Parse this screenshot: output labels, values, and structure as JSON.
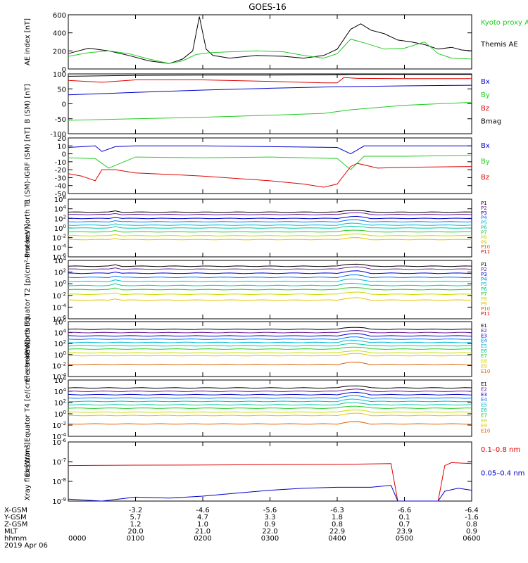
{
  "title": "GOES-16",
  "colors": {
    "black": "#000000",
    "red": "#e00000",
    "green": "#22cc22",
    "blue": "#0000cc",
    "p": [
      "#000000",
      "#6a1b9a",
      "#0000cc",
      "#0077ff",
      "#00bcd4",
      "#00c8a0",
      "#22cc22",
      "#c8dc00",
      "#e8c000",
      "#e06000",
      "#e00000"
    ]
  },
  "chart_data": [
    {
      "type": "line",
      "ylabel": "AE index [nT]",
      "ylim": [
        0,
        600
      ],
      "y_ticks": [
        "0",
        "200",
        "400",
        "600"
      ],
      "legend": [
        {
          "label": "Kyoto proxy AE",
          "color": "green"
        },
        {
          "label": "Themis AE",
          "color": "black"
        }
      ],
      "series": [
        {
          "name": "Themis AE",
          "color": "black",
          "x": [
            0,
            0.3,
            0.6,
            0.9,
            1.2,
            1.5,
            1.7,
            1.85,
            1.95,
            2.05,
            2.15,
            2.4,
            2.8,
            3.2,
            3.5,
            3.8,
            4.0,
            4.2,
            4.35,
            4.5,
            4.7,
            4.9,
            5.1,
            5.3,
            5.5,
            5.7,
            5.85,
            6.0
          ],
          "y": [
            170,
            230,
            200,
            150,
            90,
            60,
            110,
            200,
            580,
            220,
            150,
            120,
            150,
            140,
            120,
            150,
            220,
            440,
            500,
            430,
            390,
            320,
            300,
            270,
            220,
            240,
            210,
            200
          ]
        },
        {
          "name": "Kyoto proxy AE",
          "color": "green",
          "x": [
            0,
            0.3,
            0.6,
            0.9,
            1.2,
            1.5,
            1.7,
            1.9,
            2.1,
            2.4,
            2.8,
            3.2,
            3.5,
            3.8,
            4.0,
            4.2,
            4.4,
            4.7,
            5.0,
            5.3,
            5.5,
            5.7,
            6.0
          ],
          "y": [
            140,
            180,
            200,
            170,
            110,
            60,
            90,
            160,
            180,
            190,
            200,
            190,
            150,
            120,
            170,
            330,
            290,
            220,
            230,
            300,
            170,
            120,
            110
          ]
        }
      ]
    },
    {
      "type": "line",
      "ylabel": "B (SM) [nT]",
      "ylim": [
        -100,
        100
      ],
      "y_ticks": [
        "-100",
        "-50",
        "0",
        "50",
        "100"
      ],
      "legend": [
        {
          "label": "Bx",
          "color": "blue"
        },
        {
          "label": "By",
          "color": "green"
        },
        {
          "label": "Bz",
          "color": "red"
        },
        {
          "label": "Bmag",
          "color": "black"
        }
      ],
      "series": [
        {
          "name": "Bmag",
          "color": "black",
          "x": [
            0,
            1,
            2,
            3,
            4,
            4.2,
            5,
            6
          ],
          "y": [
            92,
            95,
            96,
            96,
            97,
            98,
            98,
            98
          ]
        },
        {
          "name": "Bz",
          "color": "red",
          "x": [
            0,
            0.5,
            1,
            2,
            3,
            3.8,
            4.0,
            4.1,
            4.3,
            5,
            6
          ],
          "y": [
            78,
            72,
            80,
            80,
            75,
            70,
            70,
            88,
            85,
            84,
            84
          ]
        },
        {
          "name": "Bx",
          "color": "blue",
          "x": [
            0,
            1,
            2,
            3,
            4,
            5,
            6
          ],
          "y": [
            30,
            38,
            46,
            52,
            57,
            60,
            62
          ]
        },
        {
          "name": "By",
          "color": "green",
          "x": [
            0,
            1,
            2,
            3,
            3.8,
            4.2,
            5,
            6
          ],
          "y": [
            -55,
            -50,
            -45,
            -38,
            -32,
            -20,
            -5,
            5
          ]
        }
      ]
    },
    {
      "type": "line",
      "ylabel": "B (SM)-IGRF (SM) [nT]",
      "ylim": [
        -50,
        20
      ],
      "y_ticks": [
        "-50",
        "-40",
        "-30",
        "-20",
        "-10",
        "0",
        "10",
        "20"
      ],
      "legend": [
        {
          "label": "Bx",
          "color": "blue"
        },
        {
          "label": "By",
          "color": "green"
        },
        {
          "label": "Bz",
          "color": "red"
        }
      ],
      "series": [
        {
          "name": "Bx",
          "color": "blue",
          "x": [
            0,
            0.4,
            0.5,
            0.7,
            1,
            2,
            3,
            4,
            4.2,
            4.4,
            5,
            6
          ],
          "y": [
            8,
            10,
            3,
            9,
            10,
            10,
            9,
            8,
            0,
            10,
            10,
            10
          ]
        },
        {
          "name": "By",
          "color": "green",
          "x": [
            0,
            0.4,
            0.6,
            1,
            2,
            3,
            4,
            4.2,
            4.4,
            5,
            6
          ],
          "y": [
            -5,
            -6,
            -18,
            -4,
            -5,
            -4,
            -6,
            -20,
            -3,
            -3,
            -2
          ]
        },
        {
          "name": "Bz",
          "color": "red",
          "x": [
            0,
            0.2,
            0.4,
            0.5,
            0.7,
            1,
            1.5,
            2,
            3,
            3.5,
            3.8,
            4.0,
            4.2,
            4.3,
            4.6,
            5,
            6
          ],
          "y": [
            -25,
            -28,
            -34,
            -20,
            -20,
            -24,
            -26,
            -28,
            -34,
            -38,
            -42,
            -38,
            -16,
            -12,
            -18,
            -17,
            -16
          ]
        }
      ]
    },
    {
      "type": "line",
      "ylabel": "Protons North T1",
      "y_ticks": [
        "10^-6",
        "10^-4",
        "10^-2",
        "10^0",
        "10^2",
        "10^4",
        "10^6"
      ],
      "ylim_log10": [
        -6,
        6
      ],
      "legend": [
        "P1",
        "P2",
        "P3",
        "P4",
        "P5",
        "P6",
        "P7",
        "P8",
        "P9",
        "P10",
        "P11"
      ],
      "levels_log10": [
        3.3,
        2.8,
        2.0,
        1.3,
        0.6,
        0.0,
        -0.8,
        -1.6,
        -2.4
      ]
    },
    {
      "type": "line",
      "ylabel": "Protons Equator T2 [p/(cm²-s-sr-keV)]",
      "y_ticks": [
        "10^-6",
        "10^-4",
        "10^-2",
        "10^0",
        "10^2",
        "10^4"
      ],
      "ylim_log10": [
        -6,
        4
      ],
      "legend": [
        "P1",
        "P2",
        "P3",
        "P4",
        "P5",
        "P6",
        "P7",
        "P8",
        "P9",
        "P10",
        "P11"
      ],
      "levels_log10": [
        3.0,
        2.5,
        1.8,
        1.1,
        0.4,
        -0.3,
        -1.0,
        -1.8,
        -2.8
      ]
    },
    {
      "type": "line",
      "ylabel": "Electrons North T3",
      "y_ticks": [
        "10^-4",
        "10^-2",
        "10^0",
        "10^2",
        "10^4",
        "10^6"
      ],
      "ylim_log10": [
        -4,
        6
      ],
      "legend": [
        "E1",
        "E2",
        "E3",
        "E4",
        "E5",
        "E6",
        "E7",
        "E8",
        "E9",
        "E10"
      ],
      "levels_log10": [
        4.6,
        4.0,
        3.4,
        2.8,
        2.2,
        1.6,
        1.0,
        0.3,
        -0.2,
        -1.8
      ]
    },
    {
      "type": "line",
      "ylabel": "Electrons Equator T4 [e/(cm²-s-sr-keV)]",
      "y_ticks": [
        "10^-4",
        "10^-2",
        "10^0",
        "10^2",
        "10^4",
        "10^6"
      ],
      "ylim_log10": [
        -4,
        6
      ],
      "legend": [
        "E1",
        "E2",
        "E3",
        "E4",
        "E5",
        "E6",
        "E7",
        "E8",
        "E9",
        "E10"
      ],
      "levels_log10": [
        4.6,
        4.0,
        3.4,
        2.8,
        2.2,
        1.6,
        1.0,
        0.3,
        -0.3,
        -1.8
      ]
    },
    {
      "type": "line",
      "ylabel": "Xray flux [W/m²]",
      "y_ticks": [
        "10^-9",
        "10^-8",
        "10^-7",
        "10^-6"
      ],
      "ylim_log10": [
        -9,
        -6
      ],
      "legend": [
        {
          "label": "0.1–0.8 nm",
          "color": "red"
        },
        {
          "label": "0.05–0.4 nm",
          "color": "blue"
        }
      ],
      "series": [
        {
          "name": "0.1–0.8 nm",
          "color": "red",
          "x": [
            0,
            1,
            2,
            3,
            4,
            4.8,
            4.9,
            5.0,
            5.5,
            5.6,
            5.7,
            6.0
          ],
          "y": [
            -7.2,
            -7.18,
            -7.17,
            -7.15,
            -7.14,
            -7.1,
            -9.0,
            null,
            -9.0,
            -7.2,
            -7.05,
            -7.1
          ]
        },
        {
          "name": "0.05–0.4 nm",
          "color": "blue",
          "x": [
            0,
            0.5,
            1,
            1.5,
            2,
            2.5,
            3,
            3.5,
            4,
            4.5,
            4.8,
            4.9,
            5.5,
            5.6,
            5.8,
            6.0
          ],
          "y": [
            -8.9,
            -9.0,
            -8.8,
            -8.85,
            -8.75,
            -8.6,
            -8.45,
            -8.35,
            -8.3,
            -8.3,
            -8.2,
            -9.0,
            -9.0,
            -8.5,
            -8.35,
            -8.45
          ]
        }
      ]
    }
  ],
  "x_axis": {
    "tick_labels": [
      "0000",
      "0100",
      "0200",
      "0300",
      "0400",
      "0500",
      "0600"
    ],
    "rows": [
      {
        "label": "X-GSM",
        "values": [
          "",
          "-3.2",
          "-4.6",
          "-5.6",
          "-6.3",
          "-6.6",
          "-6.4"
        ]
      },
      {
        "label": "Y-GSM",
        "values": [
          "",
          "5.7",
          "4.7",
          "3.3",
          "1.8",
          "0.1",
          "-1.6"
        ]
      },
      {
        "label": "Z-GSM",
        "values": [
          "",
          "1.2",
          "1.0",
          "0.9",
          "0.8",
          "0.7",
          "0.8"
        ]
      },
      {
        "label": "MLT",
        "values": [
          "",
          "20.0",
          "21.0",
          "22.0",
          "22.9",
          "23.9",
          "0.9"
        ]
      },
      {
        "label": "hhmm",
        "values": [
          "0000",
          "0100",
          "0200",
          "0300",
          "0400",
          "0500",
          "0600"
        ]
      }
    ],
    "date": "2019 Apr 06"
  }
}
